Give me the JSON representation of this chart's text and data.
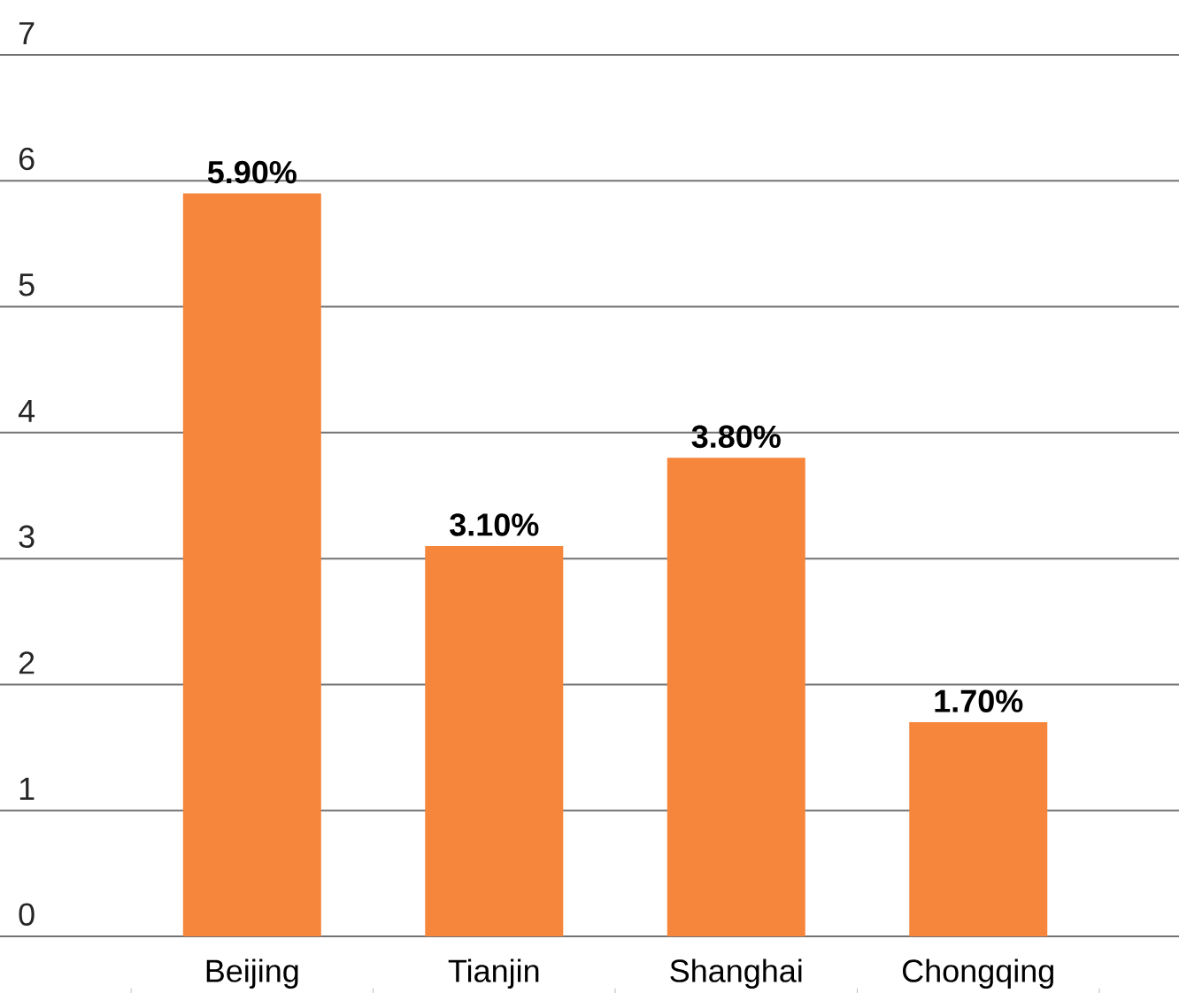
{
  "chart_data": {
    "type": "bar",
    "categories": [
      "Beijing",
      "Tianjin",
      "Shanghai",
      "Chongqing"
    ],
    "values": [
      5.9,
      3.1,
      3.8,
      1.7
    ],
    "value_labels": [
      "5.90%",
      "3.10%",
      "3.80%",
      "1.70%"
    ],
    "color": "#f5863c",
    "ylim": [
      0,
      7
    ],
    "yticks": [
      0,
      1,
      2,
      3,
      4,
      5,
      6,
      7
    ],
    "grid": "y"
  }
}
